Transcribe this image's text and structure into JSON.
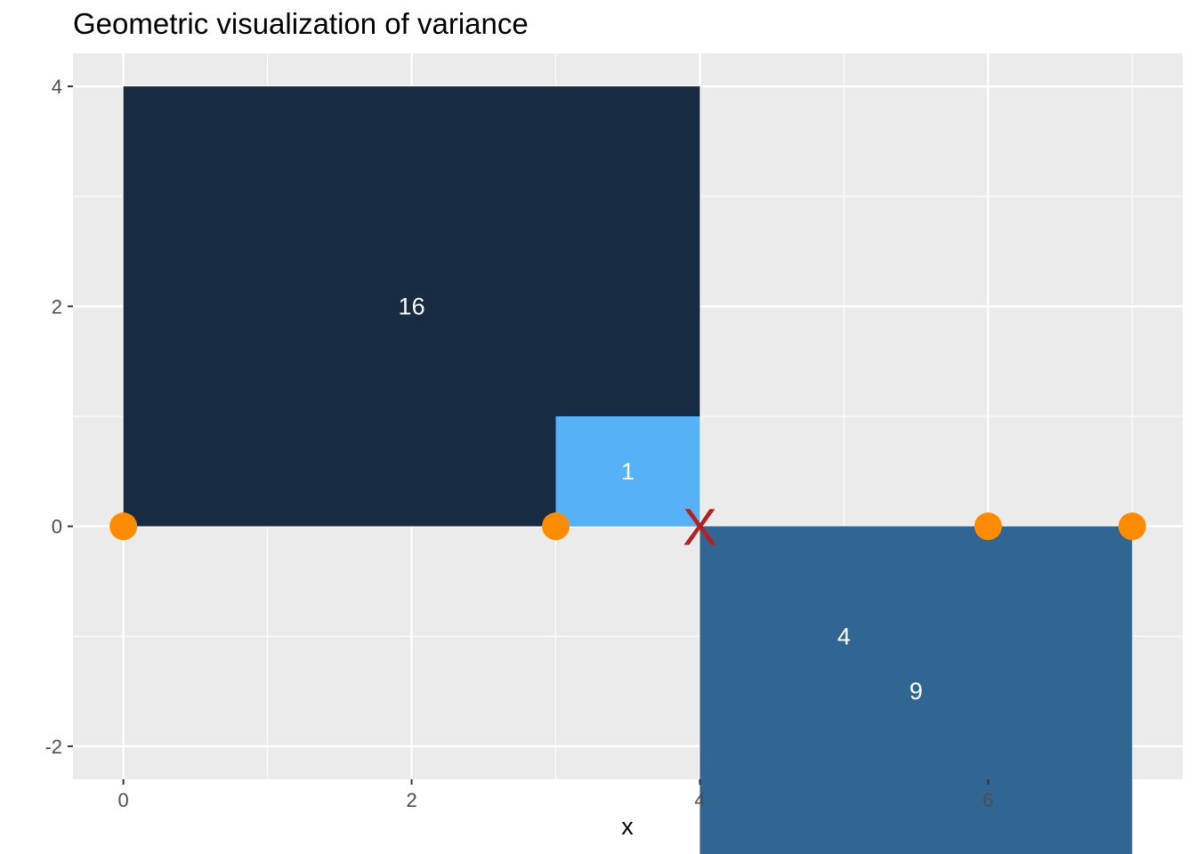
{
  "chart_data": {
    "type": "geometric-variance",
    "title": "Geometric visualization of variance",
    "xlabel": "x",
    "ylabel": "",
    "xlim": [
      -0.35,
      7.35
    ],
    "ylim": [
      -2.3,
      4.3
    ],
    "x_breaks": [
      0,
      2,
      4,
      6
    ],
    "x_minor_breaks": [
      1,
      3,
      5,
      7
    ],
    "y_breaks": [
      -2,
      0,
      2,
      4
    ],
    "y_minor_breaks": [
      -1,
      1,
      3
    ],
    "x_tick_labels": [
      "0",
      "2",
      "4",
      "6"
    ],
    "y_tick_labels": [
      "-2",
      "0",
      "2",
      "4"
    ],
    "points": [
      0,
      3,
      6,
      7
    ],
    "mean": 4,
    "mean_label": "X",
    "squares": [
      {
        "x": 0,
        "deviation": -4,
        "label": "16",
        "color": "#172B43"
      },
      {
        "x": 3,
        "deviation": -1,
        "label": "1",
        "color": "#56B1F7"
      },
      {
        "x": 6,
        "deviation": 2,
        "label": "4",
        "color": "#4894D0"
      },
      {
        "x": 7,
        "deviation": 3,
        "label": "9",
        "color": "#326692"
      }
    ],
    "grid": true,
    "colors": {
      "panel_background": "#EBEBEB",
      "grid_line": "#FFFFFF",
      "point": "#FF8C00",
      "mean_marker": "#B22222",
      "square_label": "#FFFFFF",
      "tick_label": "#4D4D4D",
      "tick_mark": "#333333"
    }
  }
}
